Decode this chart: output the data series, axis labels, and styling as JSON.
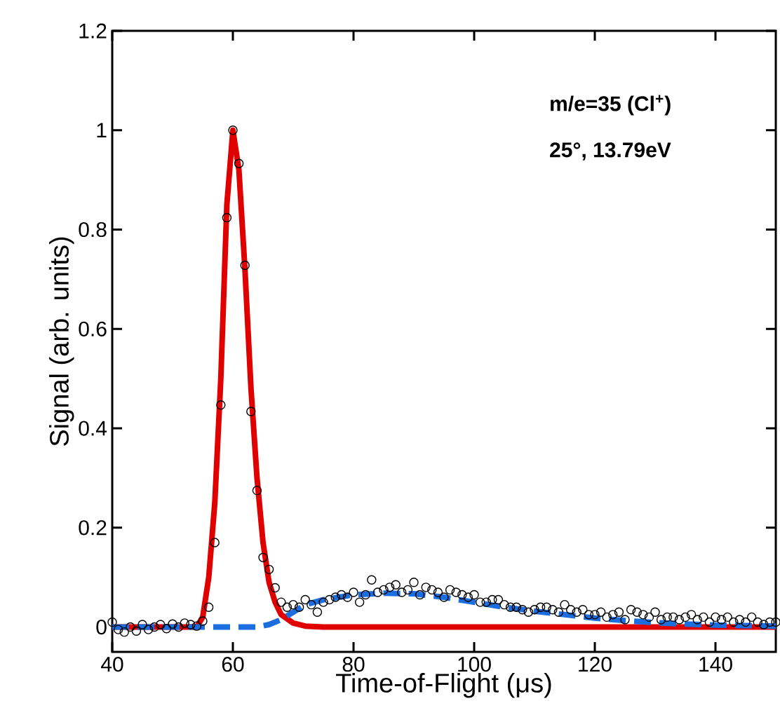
{
  "chart_data": {
    "type": "line",
    "xlabel": "Time-of-Flight (μs)",
    "ylabel": "Signal (arb. units)",
    "annotations": [
      "m/e=35 (Cl$^{+}$)",
      "25°, 13.79eV"
    ],
    "xlim": [
      40,
      150
    ],
    "xticks": [
      40,
      60,
      80,
      100,
      120,
      140
    ],
    "ylim": [
      -0.05,
      1.2
    ],
    "yticks": [
      0,
      0.2,
      0.4,
      0.6,
      0.8,
      1,
      1.2
    ],
    "grid": false,
    "series": [
      {
        "type": "scatter",
        "marker": "circle",
        "color": "#000000",
        "x": [
          40,
          41,
          42,
          43,
          44,
          45,
          46,
          47,
          48,
          49,
          50,
          51,
          52,
          53,
          54,
          55,
          56,
          57,
          58,
          59,
          60,
          61,
          62,
          63,
          64,
          65,
          66,
          67,
          68,
          69,
          70,
          71,
          72,
          73,
          74,
          75,
          76,
          77,
          78,
          79,
          80,
          81,
          82,
          83,
          84,
          85,
          86,
          87,
          88,
          89,
          90,
          91,
          92,
          93,
          94,
          95,
          96,
          97,
          98,
          99,
          100,
          101,
          102,
          103,
          104,
          105,
          106,
          107,
          108,
          109,
          110,
          111,
          112,
          113,
          114,
          115,
          116,
          117,
          118,
          119,
          120,
          121,
          122,
          123,
          124,
          125,
          126,
          127,
          128,
          129,
          130,
          131,
          132,
          133,
          134,
          135,
          136,
          137,
          138,
          139,
          140,
          141,
          142,
          143,
          144,
          145,
          146,
          147,
          148,
          149,
          150
        ],
        "values": [
          0.01,
          -0.005,
          -0.01,
          0.0,
          -0.008,
          0.005,
          -0.005,
          0.0,
          0.005,
          -0.003,
          0.006,
          0.0,
          0.008,
          0.005,
          0.002,
          0.012,
          0.04,
          0.17,
          0.447,
          0.824,
          1.0,
          0.933,
          0.728,
          0.434,
          0.275,
          0.14,
          0.116,
          0.079,
          0.05,
          0.04,
          0.045,
          0.04,
          0.055,
          0.045,
          0.03,
          0.05,
          0.055,
          0.06,
          0.065,
          0.06,
          0.07,
          0.05,
          0.065,
          0.095,
          0.07,
          0.075,
          0.08,
          0.085,
          0.07,
          0.075,
          0.09,
          0.065,
          0.08,
          0.075,
          0.07,
          0.06,
          0.075,
          0.07,
          0.065,
          0.06,
          0.065,
          0.05,
          0.05,
          0.055,
          0.055,
          0.045,
          0.04,
          0.04,
          0.035,
          0.03,
          0.035,
          0.04,
          0.04,
          0.035,
          0.03,
          0.045,
          0.035,
          0.03,
          0.035,
          0.025,
          0.025,
          0.03,
          0.02,
          0.025,
          0.03,
          0.015,
          0.035,
          0.03,
          0.025,
          0.02,
          0.03,
          0.015,
          0.02,
          0.02,
          0.015,
          0.02,
          0.025,
          0.015,
          0.02,
          0.01,
          0.02,
          0.015,
          0.02,
          0.01,
          0.015,
          0.01,
          0.02,
          0.01,
          0.005,
          0.01,
          0.01
        ]
      },
      {
        "marker": "none",
        "line_style": "solid",
        "color": "#e00000",
        "x": [
          40,
          54,
          55,
          56,
          57,
          58,
          59,
          60,
          61,
          62,
          63,
          64,
          65,
          66,
          67,
          68,
          70,
          72,
          75,
          150
        ],
        "values": [
          0,
          0,
          0.02,
          0.1,
          0.25,
          0.5,
          0.85,
          1.0,
          0.92,
          0.72,
          0.48,
          0.3,
          0.17,
          0.09,
          0.05,
          0.025,
          0.008,
          0.002,
          0,
          0
        ]
      },
      {
        "marker": "none",
        "line_style": "dashed",
        "color": "#1a6ee0",
        "x": [
          40,
          64,
          66,
          68,
          70,
          72,
          75,
          80,
          85,
          90,
          95,
          100,
          105,
          110,
          115,
          120,
          125,
          130,
          135,
          140,
          145,
          150
        ],
        "values": [
          0,
          0,
          0.005,
          0.015,
          0.03,
          0.045,
          0.055,
          0.065,
          0.068,
          0.067,
          0.06,
          0.05,
          0.04,
          0.032,
          0.025,
          0.018,
          0.013,
          0.009,
          0.006,
          0.004,
          0.003,
          0.002
        ]
      }
    ]
  }
}
